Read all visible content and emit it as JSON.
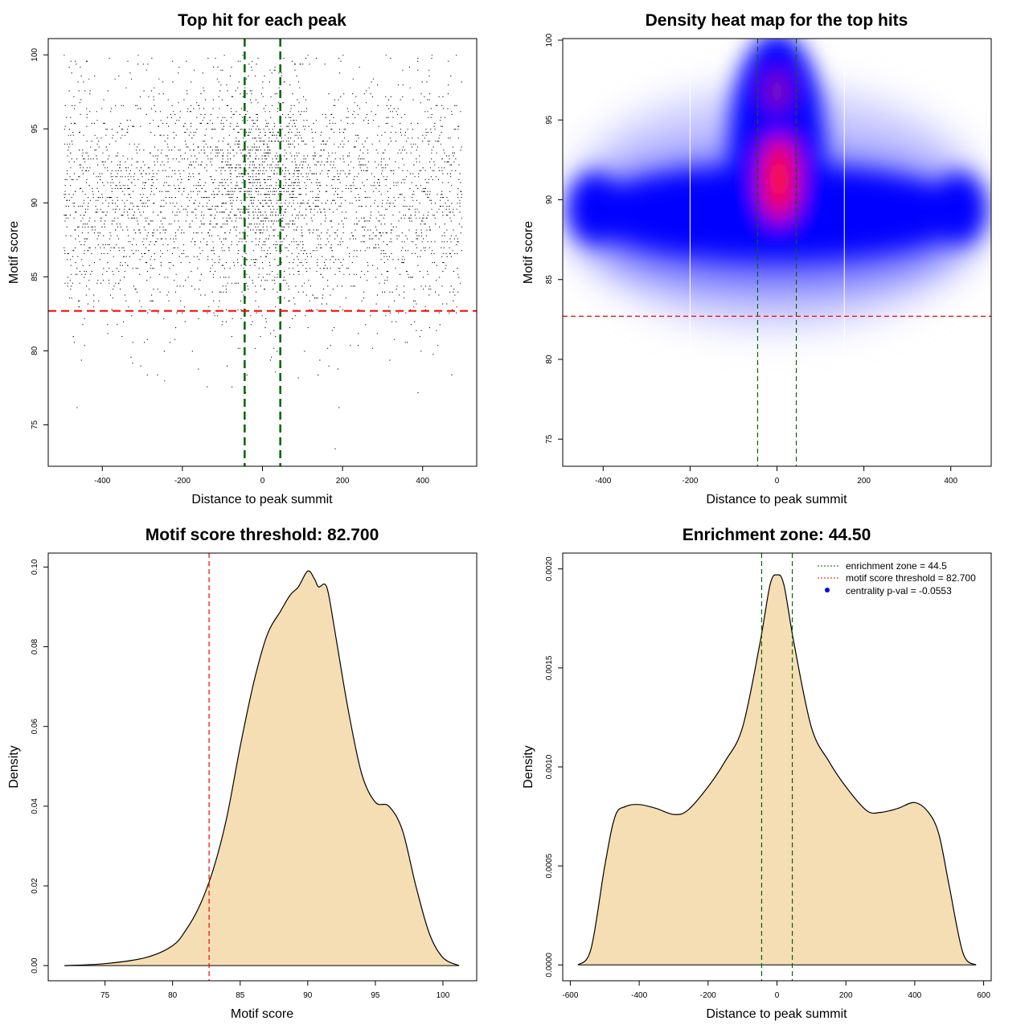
{
  "colors": {
    "threshold": "#ff0000",
    "zone": "#006400",
    "density_fill": "#f5deb3",
    "heat_low": "#ffffff",
    "heat_mid": "#0000ff",
    "heat_high": "#ff0000",
    "centrality_point": "#0000ff"
  },
  "chart_data": [
    {
      "id": "scatter",
      "type": "scatter",
      "title": "Top hit for each peak",
      "xlabel": "Distance to peak summit",
      "ylabel": "Motif score",
      "xlim": [
        -535,
        535
      ],
      "ylim": [
        72.2,
        101.1
      ],
      "xticks": [
        -400,
        -200,
        0,
        200,
        400
      ],
      "yticks": [
        75,
        80,
        85,
        90,
        95,
        100
      ],
      "x_range": [
        -497,
        497
      ],
      "y_mean": 90.2,
      "y_sd": 4.2,
      "zone_x": [
        -44.5,
        44.5
      ],
      "threshold_y": 82.7
    },
    {
      "id": "heatmap",
      "type": "heatmap",
      "title": "Density heat map for the top hits",
      "xlabel": "Distance to peak summit",
      "ylabel": "Motif score",
      "xlim": [
        -493,
        493
      ],
      "ylim": [
        73.3,
        100.1
      ],
      "xticks": [
        -400,
        -200,
        0,
        200,
        400
      ],
      "yticks": [
        75,
        80,
        85,
        90,
        95,
        100
      ],
      "zone_x": [
        -44.5,
        44.5
      ],
      "threshold_y": 82.7,
      "white_lines_x": [
        -200,
        155
      ],
      "hotspots": [
        {
          "x": 5,
          "y": 91.3,
          "intensity": "high"
        },
        {
          "x": 0,
          "y": 96.8,
          "intensity": "medium"
        },
        {
          "x": -420,
          "y": 89.5,
          "intensity": "low"
        },
        {
          "x": 420,
          "y": 89.5,
          "intensity": "low"
        }
      ]
    },
    {
      "id": "score-density",
      "type": "area",
      "title": "Motif score threshold: 82.700",
      "xlabel": "Motif score",
      "ylabel": "Density",
      "xlim": [
        70.8,
        102.5
      ],
      "ylim": [
        -0.0038,
        0.1035
      ],
      "xticks": [
        75,
        80,
        85,
        90,
        95,
        100
      ],
      "yticks": [
        0.0,
        0.02,
        0.04,
        0.06,
        0.08,
        0.1
      ],
      "ytick_labels": [
        "0.00",
        "0.02",
        "0.04",
        "0.06",
        "0.08",
        "0.10"
      ],
      "threshold_x": 82.7,
      "x": [
        72,
        75,
        78,
        80,
        81,
        82,
        83,
        84,
        85,
        86,
        87,
        88,
        88.7,
        89.3,
        90,
        90.5,
        90.8,
        91.4,
        92,
        93,
        94,
        95,
        96,
        97,
        98,
        99,
        100,
        101.2
      ],
      "y": [
        0,
        0.0005,
        0.002,
        0.005,
        0.009,
        0.015,
        0.024,
        0.037,
        0.055,
        0.071,
        0.083,
        0.089,
        0.093,
        0.095,
        0.099,
        0.097,
        0.095,
        0.095,
        0.084,
        0.064,
        0.048,
        0.041,
        0.04,
        0.034,
        0.02,
        0.008,
        0.002,
        0
      ]
    },
    {
      "id": "distance-density",
      "type": "area",
      "title": "Enrichment zone: 44.50",
      "xlabel": "Distance to peak summit",
      "ylabel": "Density",
      "xlim": [
        -622,
        622
      ],
      "ylim": [
        -8e-05,
        0.00208
      ],
      "xticks": [
        -600,
        -400,
        -200,
        0,
        200,
        400,
        600
      ],
      "yticks": [
        0,
        0.0005,
        0.001,
        0.0015,
        0.002
      ],
      "ytick_labels": [
        "0.0000",
        "0.0005",
        "0.0010",
        "0.0015",
        "0.0020"
      ],
      "zone_x": [
        -44.5,
        44.5
      ],
      "x": [
        -578,
        -540,
        -500,
        -470,
        -440,
        -400,
        -350,
        -300,
        -260,
        -200,
        -150,
        -100,
        -50,
        -20,
        0,
        20,
        50,
        100,
        150,
        200,
        260,
        300,
        350,
        400,
        440,
        470,
        500,
        540,
        578
      ],
      "y": [
        0,
        8e-05,
        0.0005,
        0.00075,
        0.0008,
        0.00081,
        0.00079,
        0.00076,
        0.00078,
        0.0009,
        0.00103,
        0.0012,
        0.00162,
        0.00192,
        0.00197,
        0.00192,
        0.00162,
        0.0012,
        0.00103,
        0.0009,
        0.00078,
        0.00077,
        0.00079,
        0.00082,
        0.00077,
        0.00066,
        0.0004,
        6e-05,
        0
      ],
      "legend": [
        {
          "label": "enrichment zone = 44.5",
          "symbol": "dotted-line",
          "color": "#006400"
        },
        {
          "label": "motif score threshold = 82.700",
          "symbol": "dotted-line",
          "color": "#ff0000"
        },
        {
          "label": "centrality p-val = -0.0553",
          "symbol": "point",
          "color": "#0000ff"
        }
      ]
    }
  ]
}
